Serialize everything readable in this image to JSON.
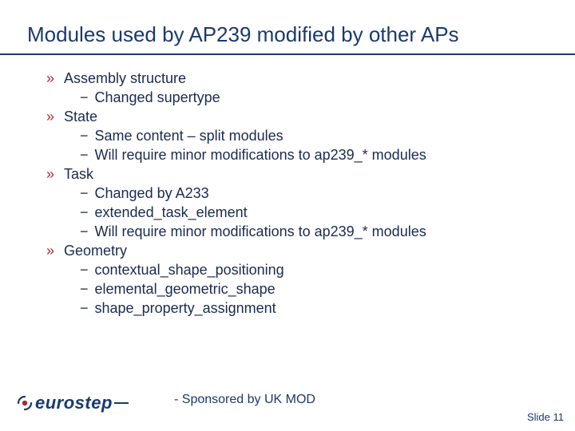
{
  "colors": {
    "title": "#1a3a6e",
    "title_rule": "#1a3a6e",
    "body_text": "#1a2a50",
    "l1_bullet": "#b02a2a",
    "l2_bullet": "#1a2a50",
    "logo": "#1a3a6e",
    "logo_accent": "#b02a2a",
    "sponsor": "#1a3a6e",
    "slidenum": "#1a3a6e",
    "background": "#ffffff"
  },
  "title": "Modules used by AP239 modified by other APs",
  "items": [
    {
      "label": "Assembly structure",
      "sub": [
        "Changed supertype"
      ]
    },
    {
      "label": "State",
      "sub": [
        "Same content – split modules",
        "Will require minor modifications to ap239_* modules"
      ]
    },
    {
      "label": "Task",
      "sub": [
        "Changed by A233",
        "extended_task_element",
        "Will require minor modifications to ap239_* modules"
      ]
    },
    {
      "label": "Geometry",
      "sub": [
        "contextual_shape_positioning",
        "elemental_geometric_shape",
        "shape_property_assignment"
      ]
    }
  ],
  "logo_text": "eurostep",
  "sponsor": "- Sponsored by UK MOD",
  "slide_label": "Slide",
  "slide_number": 11,
  "bullets": {
    "l1": "»",
    "l2": "−"
  }
}
